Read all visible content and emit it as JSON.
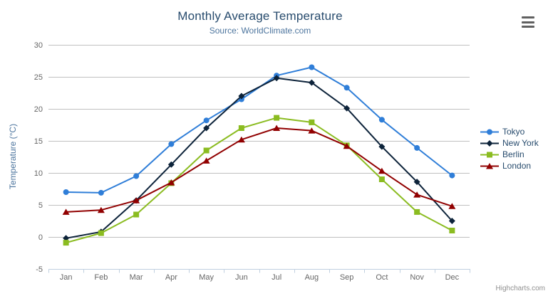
{
  "chart": {
    "title": "Monthly Average Temperature",
    "subtitle": "Source: WorldClimate.com",
    "y_axis_title": "Temperature (°C)",
    "credit": "Highcharts.com"
  },
  "chart_data": {
    "type": "line",
    "title": "Monthly Average Temperature",
    "subtitle": "Source: WorldClimate.com",
    "xlabel": "",
    "ylabel": "Temperature (°C)",
    "categories": [
      "Jan",
      "Feb",
      "Mar",
      "Apr",
      "May",
      "Jun",
      "Jul",
      "Aug",
      "Sep",
      "Oct",
      "Nov",
      "Dec"
    ],
    "series": [
      {
        "name": "Tokyo",
        "color": "#2f7ed8",
        "marker": "circle",
        "values": [
          7.0,
          6.9,
          9.5,
          14.5,
          18.2,
          21.5,
          25.2,
          26.5,
          23.3,
          18.3,
          13.9,
          9.6
        ]
      },
      {
        "name": "New York",
        "color": "#0d233a",
        "marker": "diamond",
        "values": [
          -0.2,
          0.8,
          5.7,
          11.3,
          17.0,
          22.0,
          24.8,
          24.1,
          20.1,
          14.1,
          8.6,
          2.5
        ]
      },
      {
        "name": "Berlin",
        "color": "#8bbc21",
        "marker": "square",
        "values": [
          -0.9,
          0.6,
          3.5,
          8.4,
          13.5,
          17.0,
          18.6,
          17.9,
          14.3,
          9.0,
          3.9,
          1.0
        ]
      },
      {
        "name": "London",
        "color": "#910000",
        "marker": "triangle",
        "values": [
          3.9,
          4.2,
          5.7,
          8.5,
          11.9,
          15.2,
          17.0,
          16.6,
          14.2,
          10.3,
          6.6,
          4.8
        ]
      }
    ],
    "ylim": [
      -5,
      30
    ],
    "y_tick_interval": 5,
    "grid": true,
    "legend_position": "right"
  },
  "colors": {
    "background": "#ffffff",
    "title": "#274b6d",
    "subtitle": "#4d759e",
    "axis_title": "#4d759e",
    "axis_label": "#666666",
    "grid_line": "#c0c0c0",
    "axis_line": "#c0d0e0",
    "legend_text": "#274b6d",
    "credit": "#909090",
    "menu_icon": "#606060"
  }
}
